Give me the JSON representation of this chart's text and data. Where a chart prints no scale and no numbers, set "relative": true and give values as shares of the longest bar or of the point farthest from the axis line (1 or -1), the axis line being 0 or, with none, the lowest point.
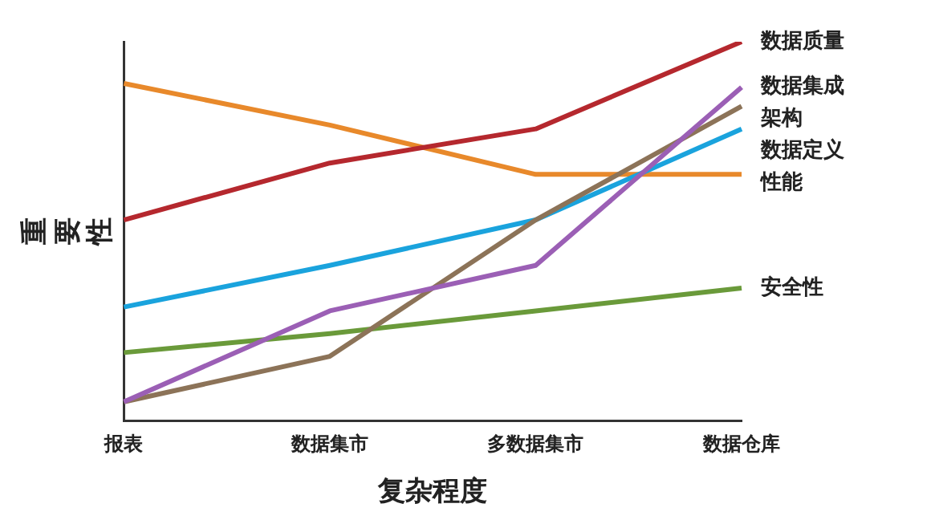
{
  "chart_data": {
    "type": "line",
    "relative": true,
    "xlabel": "复杂程度",
    "ylabel": "重要性",
    "categories": [
      "报表",
      "数据集市",
      "多数据集市",
      "数据仓库"
    ],
    "series": [
      {
        "name": "数据质量",
        "color": "#b5282e",
        "values": [
          0.53,
          0.68,
          0.77,
          1.0
        ]
      },
      {
        "name": "数据集成",
        "color": "#9b5fb5",
        "values": [
          0.05,
          0.29,
          0.41,
          0.88
        ]
      },
      {
        "name": "架构",
        "color": "#8c7358",
        "values": [
          0.05,
          0.17,
          0.53,
          0.83
        ]
      },
      {
        "name": "数据定义",
        "color": "#1aa3dd",
        "values": [
          0.3,
          0.41,
          0.53,
          0.77
        ]
      },
      {
        "name": "性能",
        "color": "#e8892b",
        "values": [
          0.89,
          0.78,
          0.65,
          0.65
        ]
      },
      {
        "name": "安全性",
        "color": "#6a9a3a",
        "values": [
          0.18,
          0.23,
          0.29,
          0.35
        ]
      }
    ],
    "grid": false,
    "legend": false,
    "tick_labels": "x",
    "marker": "none",
    "line_style": "solid"
  }
}
